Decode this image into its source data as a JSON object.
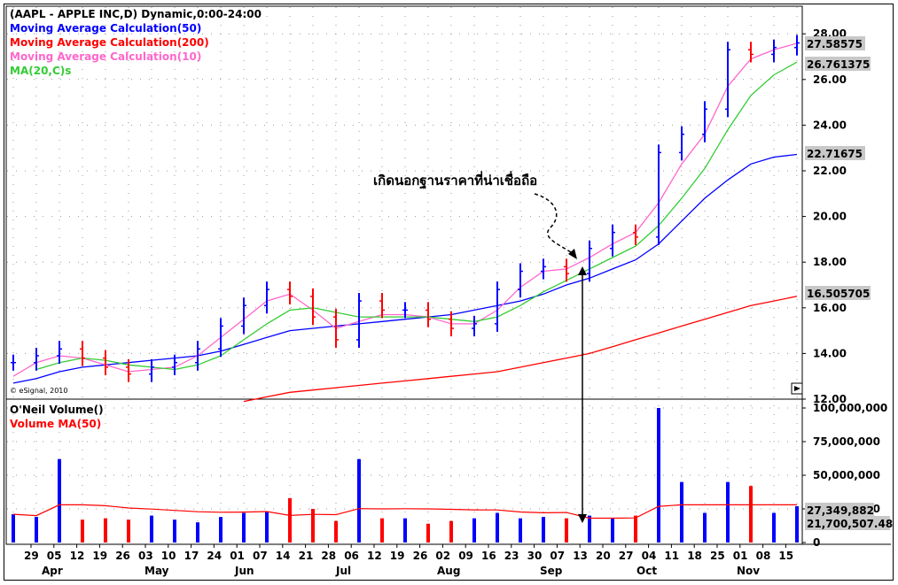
{
  "window": {
    "header": "(AAPL - APPLE INC,D) Dynamic,0:00-24:00",
    "copyright": "© eSignal, 2010"
  },
  "price_panel": {
    "legend": [
      {
        "label": "Moving Average Calculation(50)",
        "color": "#0000ff"
      },
      {
        "label": "Moving Average Calculation(200)",
        "color": "#ff0000"
      },
      {
        "label": "Moving Average Calculation(10)",
        "color": "#ff66cc"
      },
      {
        "label": "MA(20,C)s",
        "color": "#33cc33"
      }
    ],
    "last_value_tags": [
      "27.58575",
      "26.761375",
      "22.71675",
      "16.505705"
    ],
    "annotation": "เกิดนอกฐานราคาที่น่าเชื่อถือ"
  },
  "volume_panel": {
    "legend": [
      {
        "label": "O'Neil Volume()",
        "color": "#000000"
      },
      {
        "label": "Volume MA(50)",
        "color": "#ff0000"
      }
    ],
    "y_ticks": [
      "100,000,000",
      "75,000,000",
      "50,000,000",
      "25,000,000",
      "0"
    ],
    "last_value_tags": [
      "27,349,882",
      "21,700,507.48"
    ]
  },
  "x_axis": {
    "day_ticks": [
      "29",
      "05",
      "12",
      "19",
      "26",
      "03",
      "10",
      "17",
      "24",
      "01",
      "07",
      "14",
      "21",
      "28",
      "06",
      "12",
      "19",
      "26",
      "02",
      "09",
      "16",
      "23",
      "30",
      "07",
      "13",
      "20",
      "27",
      "04",
      "11",
      "18",
      "25",
      "01",
      "08",
      "15"
    ],
    "month_labels": [
      "Apr",
      "May",
      "Jun",
      "Jul",
      "Aug",
      "Sep",
      "Oct",
      "Nov"
    ]
  },
  "chart_data": {
    "type": "ohlc",
    "title": "(AAPL - APPLE INC,D) Dynamic,0:00-24:00",
    "y_ticks": [
      "28.00",
      "26.00",
      "24.00",
      "22.00",
      "20.00",
      "18.00",
      "16.00",
      "14.00",
      "12.00"
    ],
    "ylim": [
      12,
      28.5
    ],
    "grid": true,
    "legend_position": "top-left",
    "x": [
      "2010-03-29",
      "2010-04-05",
      "2010-04-12",
      "2010-04-19",
      "2010-04-26",
      "2010-05-03",
      "2010-05-10",
      "2010-05-17",
      "2010-05-24",
      "2010-06-01",
      "2010-06-07",
      "2010-06-14",
      "2010-06-21",
      "2010-06-28",
      "2010-07-06",
      "2010-07-12",
      "2010-07-19",
      "2010-07-26",
      "2010-08-02",
      "2010-08-09",
      "2010-08-16",
      "2010-08-23",
      "2010-08-30",
      "2010-09-07",
      "2010-09-13",
      "2010-09-20",
      "2010-09-27",
      "2010-10-04",
      "2010-10-11",
      "2010-10-18",
      "2010-10-25",
      "2010-11-01",
      "2010-11-08",
      "2010-11-15",
      "2010-11-19"
    ],
    "close_approx": [
      13.6,
      13.9,
      14.2,
      13.8,
      13.4,
      13.1,
      13.4,
      13.6,
      14.2,
      15.2,
      16.1,
      16.8,
      16.5,
      15.6,
      14.6,
      16.3,
      15.9,
      15.9,
      15.5,
      15.1,
      15.3,
      16.8,
      17.6,
      17.8,
      17.5,
      18.6,
      19.3,
      19.1,
      22.8,
      23.6,
      24.7,
      27.3,
      27.1,
      27.4,
      27.6
    ],
    "series": [
      {
        "name": "Moving Average Calculation(50)",
        "values": [
          12.7,
          12.9,
          13.2,
          13.4,
          13.5,
          13.6,
          13.7,
          13.8,
          13.9,
          14.1,
          14.4,
          14.7,
          15.0,
          15.1,
          15.2,
          15.3,
          15.4,
          15.5,
          15.6,
          15.7,
          15.9,
          16.1,
          16.3,
          16.6,
          17.0,
          17.3,
          17.7,
          18.1,
          18.8,
          19.8,
          20.8,
          21.6,
          22.3,
          22.6,
          22.71675
        ]
      },
      {
        "name": "Moving Average Calculation(200)",
        "values": [
          null,
          null,
          null,
          null,
          null,
          null,
          null,
          null,
          null,
          null,
          11.9,
          12.1,
          12.3,
          12.4,
          12.5,
          12.6,
          12.7,
          12.8,
          12.9,
          13.0,
          13.1,
          13.2,
          13.4,
          13.6,
          13.8,
          14.0,
          14.3,
          14.6,
          14.9,
          15.2,
          15.5,
          15.8,
          16.1,
          16.3,
          16.505705
        ]
      },
      {
        "name": "Moving Average Calculation(10)",
        "values": [
          13.0,
          13.6,
          13.9,
          13.8,
          13.5,
          13.2,
          13.3,
          13.4,
          13.9,
          14.7,
          15.5,
          16.3,
          16.6,
          15.9,
          15.1,
          15.4,
          15.7,
          15.7,
          15.6,
          15.3,
          15.3,
          15.9,
          16.9,
          17.6,
          17.7,
          18.2,
          18.8,
          19.3,
          20.6,
          22.3,
          23.6,
          25.7,
          26.9,
          27.3,
          27.58575
        ]
      },
      {
        "name": "MA(20,C)s",
        "values": [
          null,
          13.3,
          13.6,
          13.8,
          13.7,
          13.5,
          13.4,
          13.3,
          13.5,
          13.9,
          14.6,
          15.3,
          15.9,
          16.0,
          15.8,
          15.6,
          15.6,
          15.6,
          15.6,
          15.5,
          15.4,
          15.6,
          16.1,
          16.7,
          17.2,
          17.7,
          18.2,
          18.7,
          19.6,
          20.8,
          22.1,
          23.8,
          25.3,
          26.2,
          26.761375
        ]
      }
    ],
    "volume_millions_approx": [
      21,
      19,
      62,
      17,
      18,
      17,
      20,
      17,
      15,
      19,
      22,
      23,
      33,
      25,
      16,
      62,
      18,
      18,
      14,
      16,
      18,
      22,
      18,
      19,
      18,
      20,
      18,
      20,
      100,
      45,
      22,
      45,
      42,
      22,
      27
    ]
  }
}
